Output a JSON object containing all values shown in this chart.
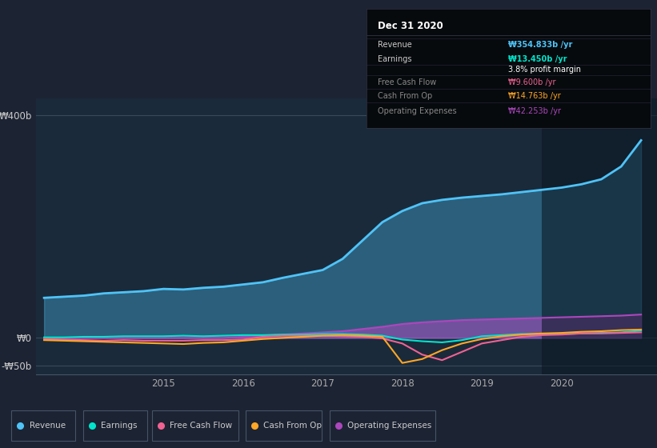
{
  "bg_color": "#1c2333",
  "plot_bg_color": "#1a2a3a",
  "title": "Dec 31 2020",
  "y_label_top": "₩400b",
  "y_label_zero": "₩0",
  "y_label_neg": "-₩50b",
  "x_ticks": [
    2015,
    2016,
    2017,
    2018,
    2019,
    2020
  ],
  "ylim": [
    -65,
    430
  ],
  "series": {
    "Revenue": {
      "color": "#4fc3f7",
      "linewidth": 2.0,
      "x": [
        2013.5,
        2013.75,
        2014.0,
        2014.25,
        2014.5,
        2014.75,
        2015.0,
        2015.25,
        2015.5,
        2015.75,
        2016.0,
        2016.25,
        2016.5,
        2016.75,
        2017.0,
        2017.25,
        2017.5,
        2017.75,
        2018.0,
        2018.25,
        2018.5,
        2018.75,
        2019.0,
        2019.25,
        2019.5,
        2019.75,
        2020.0,
        2020.25,
        2020.5,
        2020.75,
        2021.0
      ],
      "y": [
        72,
        74,
        76,
        80,
        82,
        84,
        88,
        87,
        90,
        92,
        96,
        100,
        108,
        115,
        122,
        142,
        175,
        208,
        228,
        242,
        248,
        252,
        255,
        258,
        262,
        266,
        270,
        276,
        285,
        308,
        355
      ]
    },
    "Earnings": {
      "color": "#00e5cc",
      "linewidth": 1.5,
      "x": [
        2013.5,
        2013.75,
        2014.0,
        2014.25,
        2014.5,
        2014.75,
        2015.0,
        2015.25,
        2015.5,
        2015.75,
        2016.0,
        2016.25,
        2016.5,
        2016.75,
        2017.0,
        2017.25,
        2017.5,
        2017.75,
        2018.0,
        2018.25,
        2018.5,
        2018.75,
        2019.0,
        2019.25,
        2019.5,
        2019.75,
        2020.0,
        2020.25,
        2020.5,
        2020.75,
        2021.0
      ],
      "y": [
        1,
        1,
        2,
        2,
        3,
        3,
        3,
        4,
        3,
        4,
        5,
        5,
        6,
        6,
        7,
        7,
        6,
        4,
        -3,
        -6,
        -8,
        -4,
        3,
        5,
        7,
        7,
        7,
        8,
        9,
        10,
        13
      ]
    },
    "Free Cash Flow": {
      "color": "#f06292",
      "linewidth": 1.5,
      "x": [
        2013.5,
        2013.75,
        2014.0,
        2014.25,
        2014.5,
        2014.75,
        2015.0,
        2015.25,
        2015.5,
        2015.75,
        2016.0,
        2016.25,
        2016.5,
        2016.75,
        2017.0,
        2017.25,
        2017.5,
        2017.75,
        2018.0,
        2018.25,
        2018.5,
        2018.75,
        2019.0,
        2019.25,
        2019.5,
        2019.75,
        2020.0,
        2020.25,
        2020.5,
        2020.75,
        2021.0
      ],
      "y": [
        -2,
        -3,
        -4,
        -5,
        -4,
        -5,
        -5,
        -5,
        -4,
        -4,
        -3,
        2,
        4,
        4,
        4,
        3,
        2,
        -1,
        -10,
        -30,
        -40,
        -25,
        -10,
        -4,
        2,
        5,
        6,
        8,
        8,
        9,
        10
      ]
    },
    "Cash From Op": {
      "color": "#ffa726",
      "linewidth": 1.5,
      "x": [
        2013.5,
        2013.75,
        2014.0,
        2014.25,
        2014.5,
        2014.75,
        2015.0,
        2015.25,
        2015.5,
        2015.75,
        2016.0,
        2016.25,
        2016.5,
        2016.75,
        2017.0,
        2017.25,
        2017.5,
        2017.75,
        2018.0,
        2018.25,
        2018.5,
        2018.75,
        2019.0,
        2019.25,
        2019.5,
        2019.75,
        2020.0,
        2020.25,
        2020.5,
        2020.75,
        2021.0
      ],
      "y": [
        -4,
        -5,
        -6,
        -7,
        -8,
        -9,
        -10,
        -11,
        -9,
        -8,
        -5,
        -2,
        0,
        2,
        4,
        5,
        4,
        2,
        -45,
        -38,
        -22,
        -10,
        -2,
        3,
        6,
        8,
        9,
        11,
        12,
        14,
        15
      ]
    },
    "Operating Expenses": {
      "color": "#ab47bc",
      "linewidth": 1.5,
      "x": [
        2013.5,
        2013.75,
        2014.0,
        2014.25,
        2014.5,
        2014.75,
        2015.0,
        2015.25,
        2015.5,
        2015.75,
        2016.0,
        2016.25,
        2016.5,
        2016.75,
        2017.0,
        2017.25,
        2017.5,
        2017.75,
        2018.0,
        2018.25,
        2018.5,
        2018.75,
        2019.0,
        2019.25,
        2019.5,
        2019.75,
        2020.0,
        2020.25,
        2020.5,
        2020.75,
        2021.0
      ],
      "y": [
        0,
        0,
        0,
        0,
        0,
        0,
        0,
        0,
        0,
        0,
        2,
        4,
        6,
        8,
        10,
        12,
        16,
        20,
        25,
        28,
        30,
        32,
        33,
        34,
        35,
        36,
        37,
        38,
        39,
        40,
        42
      ]
    }
  },
  "tooltip_box": {
    "title": "Dec 31 2020",
    "rows": [
      {
        "label": "Revenue",
        "value": "₩354.833b /yr",
        "value_color": "#4fc3f7",
        "label_color": "#cccccc",
        "bold": true
      },
      {
        "label": "Earnings",
        "value": "₩13.450b /yr",
        "value_color": "#00e5cc",
        "label_color": "#cccccc",
        "bold": true
      },
      {
        "label": "",
        "value": "3.8% profit margin",
        "value_color": "#ffffff",
        "label_color": "#cccccc",
        "bold": false
      },
      {
        "label": "Free Cash Flow",
        "value": "₩9.600b /yr",
        "value_color": "#f06292",
        "label_color": "#888888",
        "bold": false
      },
      {
        "label": "Cash From Op",
        "value": "₩14.763b /yr",
        "value_color": "#ffa726",
        "label_color": "#888888",
        "bold": false
      },
      {
        "label": "Operating Expenses",
        "value": "₩42.253b /yr",
        "value_color": "#ab47bc",
        "label_color": "#888888",
        "bold": false
      }
    ]
  },
  "legend_items": [
    {
      "label": "Revenue",
      "color": "#4fc3f7"
    },
    {
      "label": "Earnings",
      "color": "#00e5cc"
    },
    {
      "label": "Free Cash Flow",
      "color": "#f06292"
    },
    {
      "label": "Cash From Op",
      "color": "#ffa726"
    },
    {
      "label": "Operating Expenses",
      "color": "#ab47bc"
    }
  ],
  "dark_overlay_start": 2019.75
}
